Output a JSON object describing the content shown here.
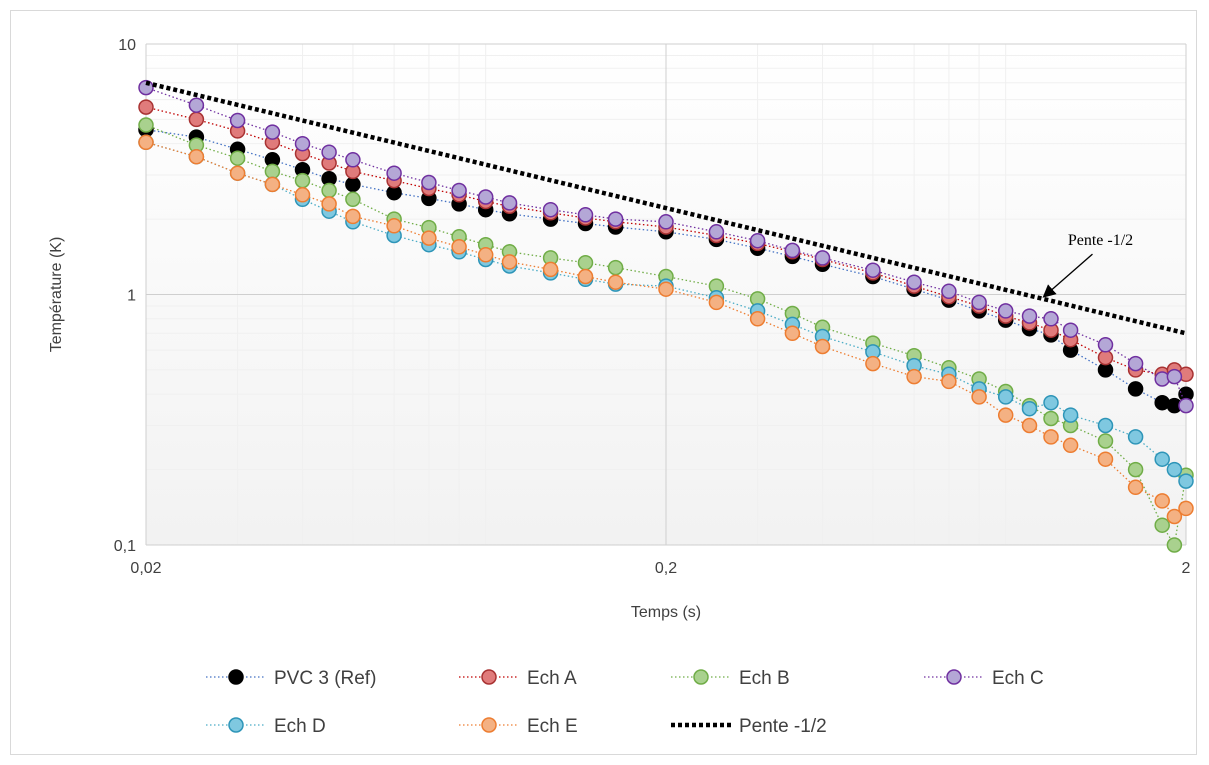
{
  "chart_data": {
    "type": "scatter",
    "xlabel": "Temps (s)",
    "ylabel": "Température (K)",
    "xscale": "log",
    "yscale": "log",
    "xlim": [
      0.02,
      2
    ],
    "ylim": [
      0.1,
      10
    ],
    "x_major_ticks": [
      {
        "value": 0.02,
        "label": "0,02"
      },
      {
        "value": 0.2,
        "label": "0,2"
      },
      {
        "value": 2,
        "label": "2"
      }
    ],
    "y_major_ticks": [
      {
        "value": 0.1,
        "label": "0,1"
      },
      {
        "value": 1,
        "label": "1"
      },
      {
        "value": 10,
        "label": "10"
      }
    ],
    "grid": true,
    "legend_position": "bottom",
    "annotation": {
      "text": "Pente -1/2",
      "arrow_to": {
        "x": 1.05,
        "y": 0.95
      }
    },
    "series": [
      {
        "name": "PVC 3 (Ref)",
        "color": "#000000",
        "edge": "#000000",
        "line": "#4472c4",
        "points": [
          [
            0.02,
            4.55
          ],
          [
            0.025,
            4.25
          ],
          [
            0.03,
            3.8
          ],
          [
            0.035,
            3.45
          ],
          [
            0.04,
            3.15
          ],
          [
            0.045,
            2.9
          ],
          [
            0.05,
            2.75
          ],
          [
            0.06,
            2.55
          ],
          [
            0.07,
            2.42
          ],
          [
            0.08,
            2.3
          ],
          [
            0.09,
            2.18
          ],
          [
            0.1,
            2.1
          ],
          [
            0.12,
            2.0
          ],
          [
            0.14,
            1.92
          ],
          [
            0.16,
            1.86
          ],
          [
            0.2,
            1.78
          ],
          [
            0.25,
            1.66
          ],
          [
            0.3,
            1.53
          ],
          [
            0.35,
            1.42
          ],
          [
            0.4,
            1.32
          ],
          [
            0.5,
            1.18
          ],
          [
            0.6,
            1.05
          ],
          [
            0.7,
            0.95
          ],
          [
            0.8,
            0.86
          ],
          [
            0.9,
            0.79
          ],
          [
            1.0,
            0.73
          ],
          [
            1.1,
            0.69
          ],
          [
            1.2,
            0.6
          ],
          [
            1.4,
            0.5
          ],
          [
            1.6,
            0.42
          ],
          [
            1.8,
            0.37
          ],
          [
            1.9,
            0.36
          ],
          [
            2.0,
            0.4
          ]
        ]
      },
      {
        "name": "Ech A",
        "color": "#e07b7b",
        "edge": "#a83232",
        "line": "#c00000",
        "points": [
          [
            0.02,
            5.6
          ],
          [
            0.025,
            5.0
          ],
          [
            0.03,
            4.5
          ],
          [
            0.035,
            4.05
          ],
          [
            0.04,
            3.65
          ],
          [
            0.045,
            3.35
          ],
          [
            0.05,
            3.1
          ],
          [
            0.06,
            2.85
          ],
          [
            0.07,
            2.65
          ],
          [
            0.08,
            2.5
          ],
          [
            0.09,
            2.35
          ],
          [
            0.1,
            2.25
          ],
          [
            0.12,
            2.12
          ],
          [
            0.14,
            2.02
          ],
          [
            0.16,
            1.95
          ],
          [
            0.2,
            1.86
          ],
          [
            0.25,
            1.72
          ],
          [
            0.3,
            1.6
          ],
          [
            0.35,
            1.48
          ],
          [
            0.4,
            1.38
          ],
          [
            0.5,
            1.22
          ],
          [
            0.6,
            1.08
          ],
          [
            0.7,
            0.98
          ],
          [
            0.8,
            0.9
          ],
          [
            0.9,
            0.82
          ],
          [
            1.0,
            0.77
          ],
          [
            1.1,
            0.72
          ],
          [
            1.2,
            0.66
          ],
          [
            1.4,
            0.56
          ],
          [
            1.6,
            0.5
          ],
          [
            1.8,
            0.48
          ],
          [
            1.9,
            0.5
          ],
          [
            2.0,
            0.48
          ]
        ]
      },
      {
        "name": "Ech B",
        "color": "#a9d18e",
        "edge": "#70ad47",
        "line": "#70ad47",
        "points": [
          [
            0.02,
            4.75
          ],
          [
            0.025,
            3.95
          ],
          [
            0.03,
            3.5
          ],
          [
            0.035,
            3.1
          ],
          [
            0.04,
            2.85
          ],
          [
            0.045,
            2.6
          ],
          [
            0.05,
            2.4
          ],
          [
            0.06,
            2.0
          ],
          [
            0.07,
            1.85
          ],
          [
            0.08,
            1.7
          ],
          [
            0.09,
            1.58
          ],
          [
            0.1,
            1.48
          ],
          [
            0.12,
            1.4
          ],
          [
            0.14,
            1.34
          ],
          [
            0.16,
            1.28
          ],
          [
            0.2,
            1.18
          ],
          [
            0.25,
            1.08
          ],
          [
            0.3,
            0.96
          ],
          [
            0.35,
            0.84
          ],
          [
            0.4,
            0.74
          ],
          [
            0.5,
            0.64
          ],
          [
            0.6,
            0.57
          ],
          [
            0.7,
            0.51
          ],
          [
            0.8,
            0.46
          ],
          [
            0.9,
            0.41
          ],
          [
            1.0,
            0.36
          ],
          [
            1.1,
            0.32
          ],
          [
            1.2,
            0.3
          ],
          [
            1.4,
            0.26
          ],
          [
            1.6,
            0.2
          ],
          [
            1.8,
            0.12
          ],
          [
            1.9,
            0.1
          ],
          [
            2.0,
            0.19
          ]
        ]
      },
      {
        "name": "Ech C",
        "color": "#b4a7d6",
        "edge": "#7030a0",
        "line": "#7030a0",
        "points": [
          [
            0.02,
            6.7
          ],
          [
            0.025,
            5.7
          ],
          [
            0.03,
            4.95
          ],
          [
            0.035,
            4.45
          ],
          [
            0.04,
            4.0
          ],
          [
            0.045,
            3.7
          ],
          [
            0.05,
            3.45
          ],
          [
            0.06,
            3.05
          ],
          [
            0.07,
            2.8
          ],
          [
            0.08,
            2.6
          ],
          [
            0.09,
            2.45
          ],
          [
            0.1,
            2.32
          ],
          [
            0.12,
            2.18
          ],
          [
            0.14,
            2.08
          ],
          [
            0.16,
            2.0
          ],
          [
            0.2,
            1.95
          ],
          [
            0.25,
            1.78
          ],
          [
            0.3,
            1.64
          ],
          [
            0.35,
            1.5
          ],
          [
            0.4,
            1.4
          ],
          [
            0.5,
            1.25
          ],
          [
            0.6,
            1.12
          ],
          [
            0.7,
            1.03
          ],
          [
            0.8,
            0.93
          ],
          [
            0.9,
            0.86
          ],
          [
            1.0,
            0.82
          ],
          [
            1.1,
            0.8
          ],
          [
            1.2,
            0.72
          ],
          [
            1.4,
            0.63
          ],
          [
            1.6,
            0.53
          ],
          [
            1.8,
            0.46
          ],
          [
            1.9,
            0.47
          ],
          [
            2.0,
            0.36
          ]
        ]
      },
      {
        "name": "Ech D",
        "color": "#7fc8e0",
        "edge": "#2e95b8",
        "line": "#4bacc6",
        "points": [
          [
            0.02,
            4.05
          ],
          [
            0.025,
            3.55
          ],
          [
            0.03,
            3.05
          ],
          [
            0.035,
            2.75
          ],
          [
            0.04,
            2.4
          ],
          [
            0.045,
            2.15
          ],
          [
            0.05,
            1.95
          ],
          [
            0.06,
            1.72
          ],
          [
            0.07,
            1.58
          ],
          [
            0.08,
            1.48
          ],
          [
            0.09,
            1.38
          ],
          [
            0.1,
            1.3
          ],
          [
            0.12,
            1.22
          ],
          [
            0.14,
            1.15
          ],
          [
            0.16,
            1.1
          ],
          [
            0.2,
            1.08
          ],
          [
            0.25,
            0.97
          ],
          [
            0.3,
            0.86
          ],
          [
            0.35,
            0.76
          ],
          [
            0.4,
            0.68
          ],
          [
            0.5,
            0.59
          ],
          [
            0.6,
            0.52
          ],
          [
            0.7,
            0.48
          ],
          [
            0.8,
            0.42
          ],
          [
            0.9,
            0.39
          ],
          [
            1.0,
            0.35
          ],
          [
            1.1,
            0.37
          ],
          [
            1.2,
            0.33
          ],
          [
            1.4,
            0.3
          ],
          [
            1.6,
            0.27
          ],
          [
            1.8,
            0.22
          ],
          [
            1.9,
            0.2
          ],
          [
            2.0,
            0.18
          ]
        ]
      },
      {
        "name": "Ech E",
        "color": "#f4b183",
        "edge": "#ed7d31",
        "line": "#ed7d31",
        "points": [
          [
            0.02,
            4.05
          ],
          [
            0.025,
            3.55
          ],
          [
            0.03,
            3.05
          ],
          [
            0.035,
            2.75
          ],
          [
            0.04,
            2.5
          ],
          [
            0.045,
            2.3
          ],
          [
            0.05,
            2.05
          ],
          [
            0.06,
            1.88
          ],
          [
            0.07,
            1.68
          ],
          [
            0.08,
            1.55
          ],
          [
            0.09,
            1.44
          ],
          [
            0.1,
            1.35
          ],
          [
            0.12,
            1.26
          ],
          [
            0.14,
            1.18
          ],
          [
            0.16,
            1.12
          ],
          [
            0.2,
            1.05
          ],
          [
            0.25,
            0.93
          ],
          [
            0.3,
            0.8
          ],
          [
            0.35,
            0.7
          ],
          [
            0.4,
            0.62
          ],
          [
            0.5,
            0.53
          ],
          [
            0.6,
            0.47
          ],
          [
            0.7,
            0.45
          ],
          [
            0.8,
            0.39
          ],
          [
            0.9,
            0.33
          ],
          [
            1.0,
            0.3
          ],
          [
            1.1,
            0.27
          ],
          [
            1.2,
            0.25
          ],
          [
            1.4,
            0.22
          ],
          [
            1.6,
            0.17
          ],
          [
            1.8,
            0.15
          ],
          [
            1.9,
            0.13
          ],
          [
            2.0,
            0.14
          ]
        ]
      },
      {
        "name": "Pente -1/2",
        "style": "dashed",
        "color": "#000000",
        "points": [
          [
            0.02,
            7.0
          ],
          [
            2,
            0.7
          ]
        ]
      }
    ]
  }
}
